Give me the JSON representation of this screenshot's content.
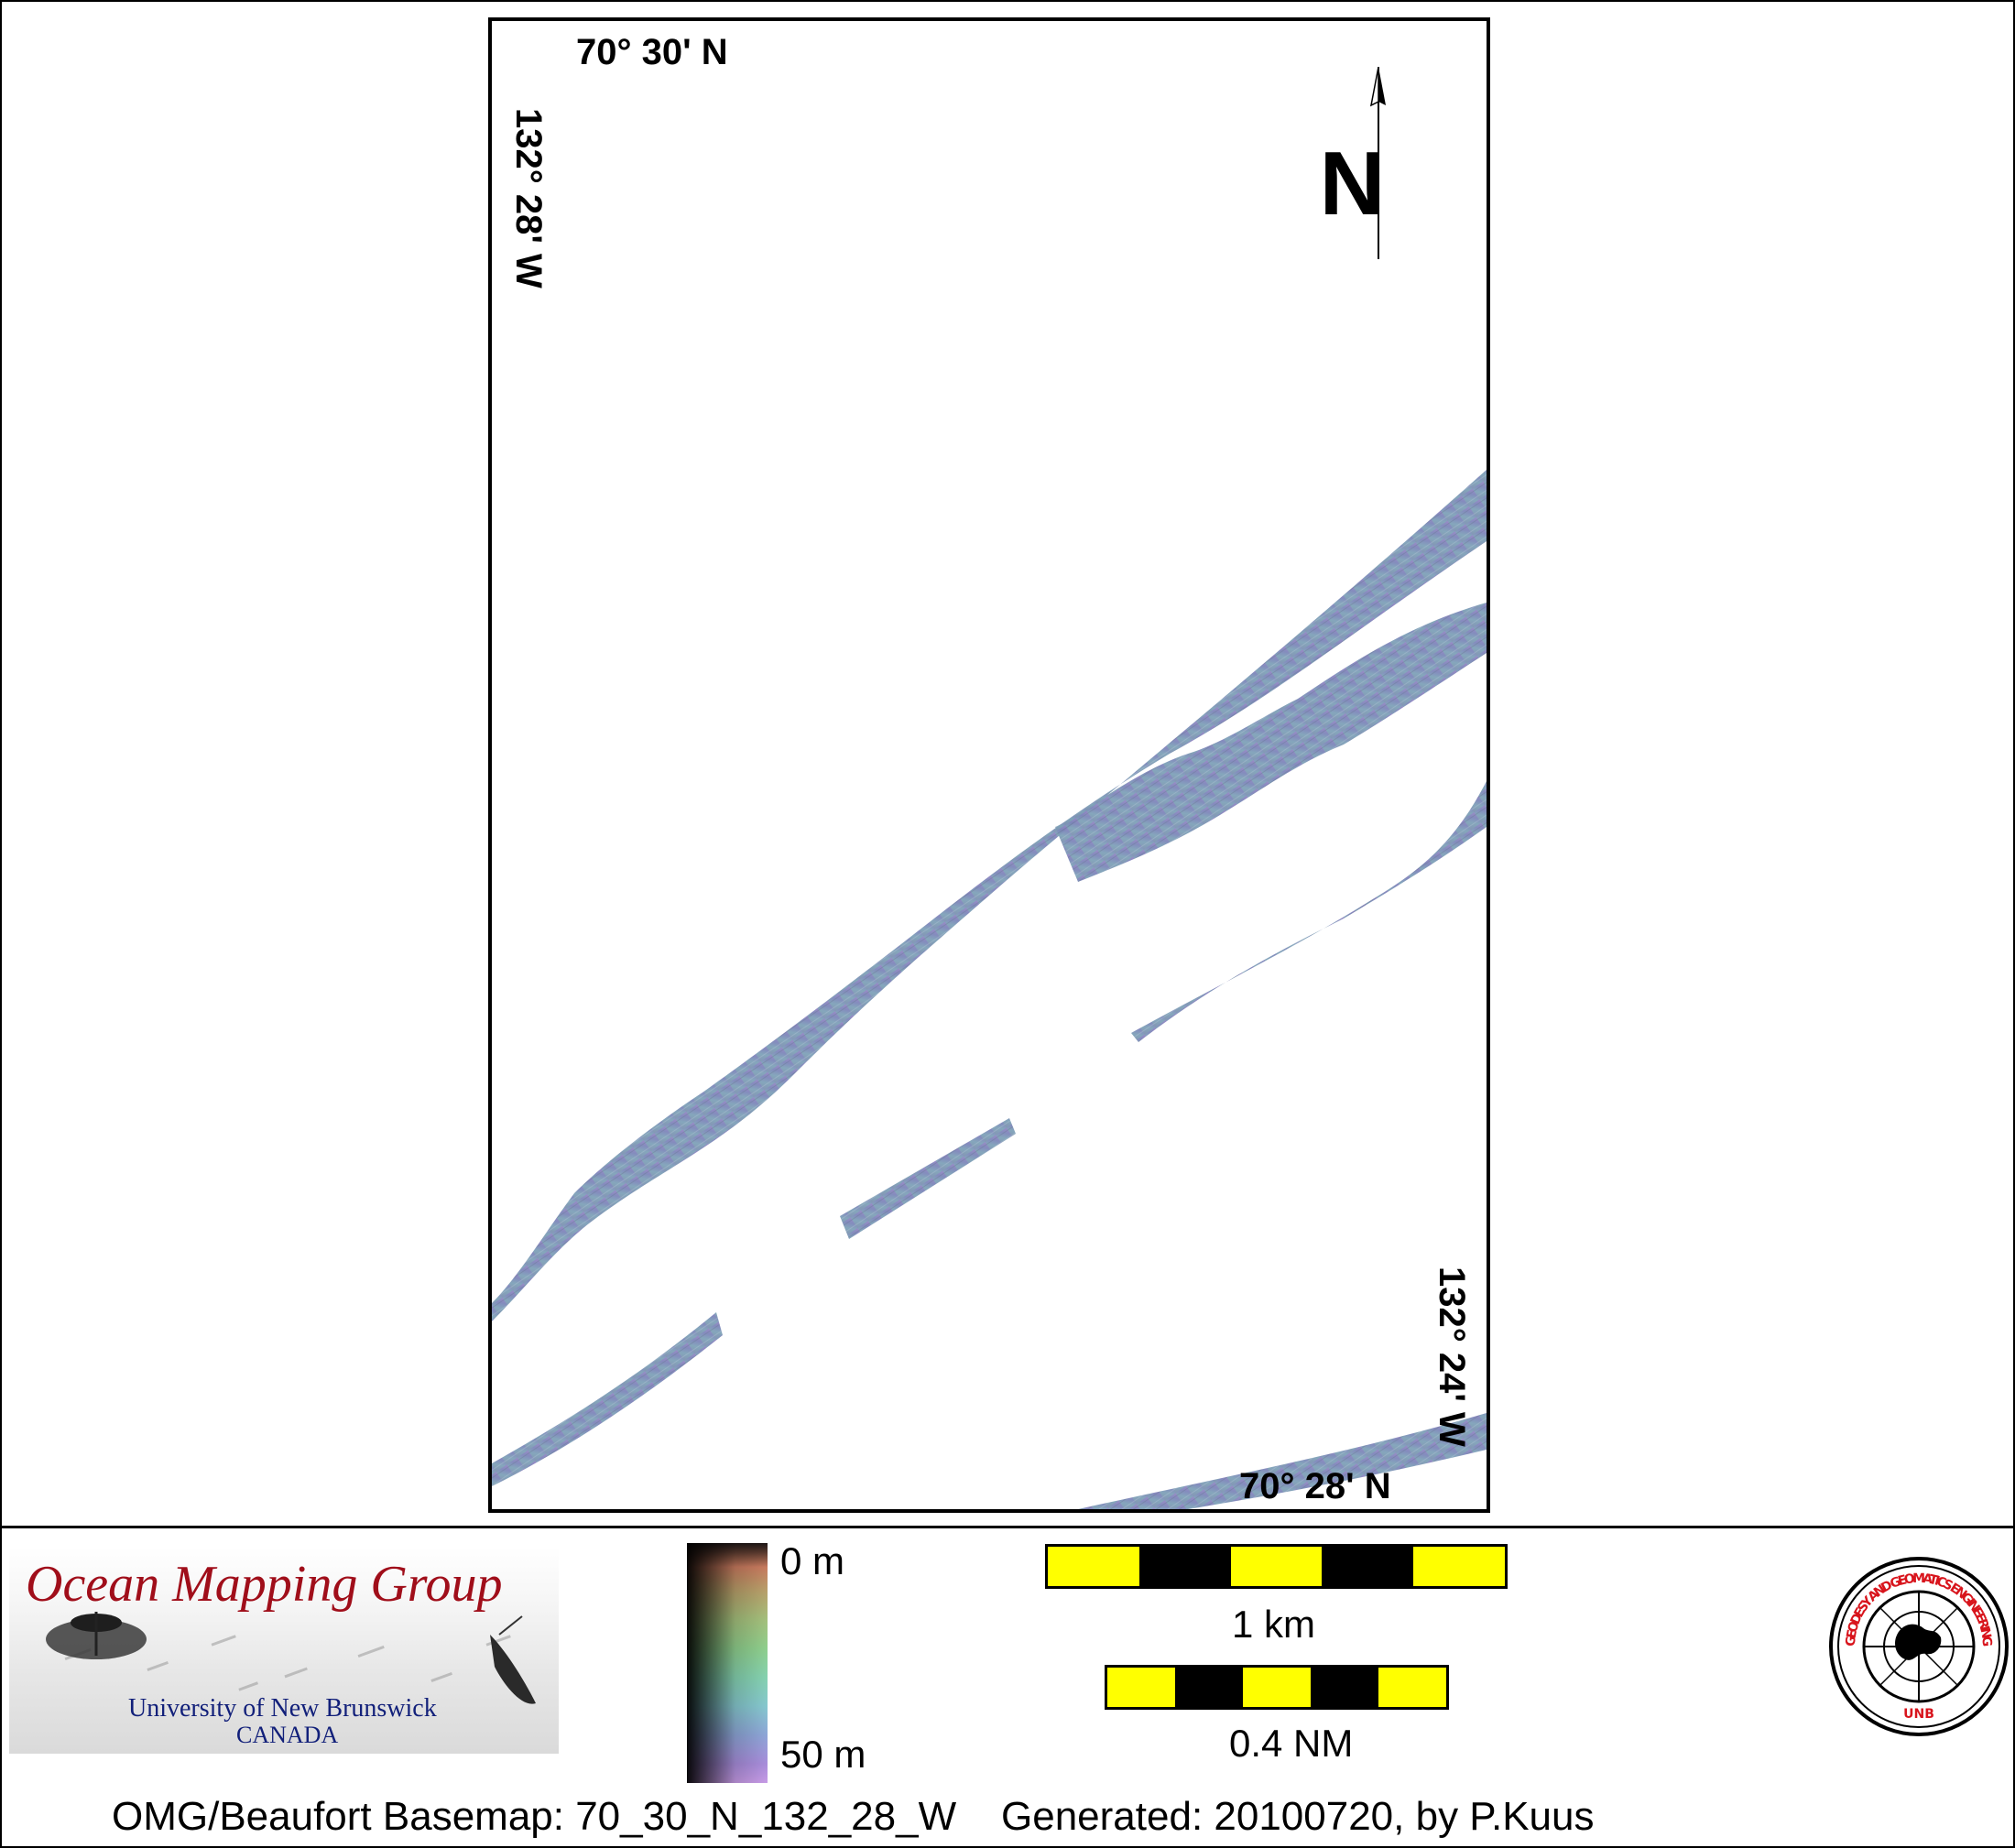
{
  "map": {
    "lat_top": "70° 30' N",
    "lat_bottom": "70° 28' N",
    "lon_left": "132° 28' W",
    "lon_right": "132° 24' W",
    "north_letter": "N",
    "swath_color": "#7f8fb5"
  },
  "logo": {
    "title": "Ocean Mapping Group",
    "university": "University of New Brunswick",
    "country": "CANADA"
  },
  "colorbar": {
    "top_label": "0 m",
    "bottom_label": "50 m"
  },
  "scale": {
    "km_label": "1 km",
    "nm_label": "0.4 NM",
    "colors": {
      "light": "#ffff00",
      "dark": "#000000"
    }
  },
  "seal": {
    "ring_text": "GEODESY AND GEOMATICS ENGINEERING",
    "bottom_text": "UNB"
  },
  "footer": {
    "basemap": "OMG/Beaufort Basemap: 70_30_N_132_28_W",
    "generated": "Generated: 20100720, by P.Kuus"
  }
}
